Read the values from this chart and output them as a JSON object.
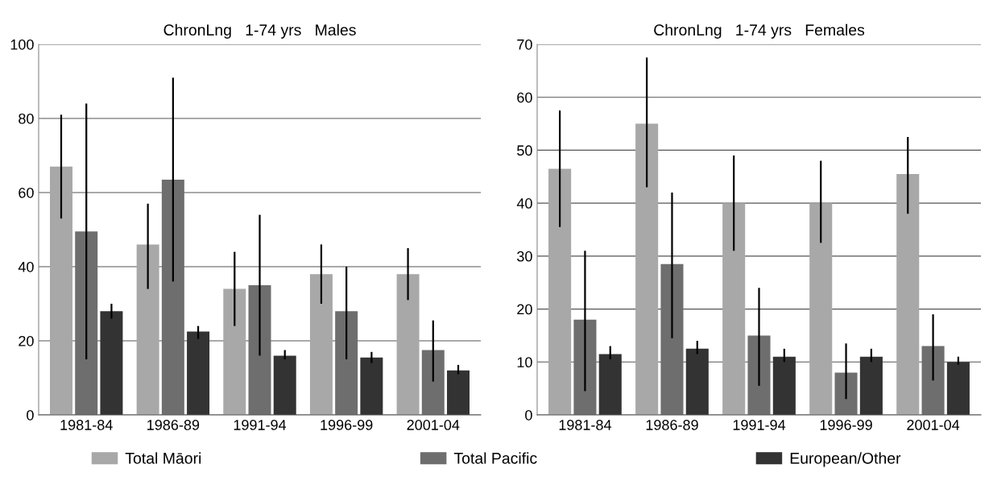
{
  "chart_data": [
    {
      "type": "bar",
      "title": "ChronLng   1-74 yrs   Males",
      "categories": [
        "1981-84",
        "1986-89",
        "1991-94",
        "1996-99",
        "2001-04"
      ],
      "ylim": [
        0,
        100
      ],
      "yticks": [
        0,
        20,
        40,
        60,
        80,
        100
      ],
      "grid": "y",
      "legend": "bottom",
      "series": [
        {
          "name": "Total Māori",
          "color": "#a8a8a8",
          "values": [
            67,
            46,
            34,
            38,
            38
          ],
          "errors": [
            [
              53,
              81
            ],
            [
              34,
              57
            ],
            [
              24,
              44
            ],
            [
              30,
              46
            ],
            [
              31,
              45
            ]
          ]
        },
        {
          "name": "Total Pacific",
          "color": "#6e6e6e",
          "values": [
            49.5,
            63.5,
            35,
            28,
            17.5
          ],
          "errors": [
            [
              15,
              84
            ],
            [
              36,
              91
            ],
            [
              16,
              54
            ],
            [
              15,
              40
            ],
            [
              9,
              25.5
            ]
          ]
        },
        {
          "name": "European/Other",
          "color": "#333333",
          "values": [
            28,
            22.5,
            16,
            15.5,
            12
          ],
          "errors": [
            [
              26,
              30
            ],
            [
              20.5,
              24
            ],
            [
              15,
              17.5
            ],
            [
              14,
              17
            ],
            [
              11,
              13.5
            ]
          ]
        }
      ]
    },
    {
      "type": "bar",
      "title": "ChronLng   1-74 yrs   Females",
      "categories": [
        "1981-84",
        "1986-89",
        "1991-94",
        "1996-99",
        "2001-04"
      ],
      "ylim": [
        0,
        70
      ],
      "yticks": [
        0,
        10,
        20,
        30,
        40,
        50,
        60,
        70
      ],
      "grid": "y",
      "series": [
        {
          "color": "#a8a8a8",
          "values": [
            46.5,
            55,
            40,
            40,
            45.5
          ],
          "errors": [
            [
              35.5,
              57.5
            ],
            [
              43,
              67.5
            ],
            [
              31,
              49
            ],
            [
              32.5,
              48
            ],
            [
              38,
              52.5
            ]
          ]
        },
        {
          "color": "#6e6e6e",
          "values": [
            18,
            28.5,
            15,
            8,
            13
          ],
          "errors": [
            [
              4.5,
              31
            ],
            [
              14.5,
              42
            ],
            [
              5.5,
              24
            ],
            [
              3,
              13.5
            ],
            [
              6.5,
              19
            ]
          ]
        },
        {
          "color": "#333333",
          "values": [
            11.5,
            12.5,
            11,
            11,
            10
          ],
          "errors": [
            [
              10.5,
              13
            ],
            [
              11.5,
              14
            ],
            [
              10,
              12.5
            ],
            [
              10,
              12.5
            ],
            [
              9.5,
              11
            ]
          ]
        }
      ]
    }
  ]
}
